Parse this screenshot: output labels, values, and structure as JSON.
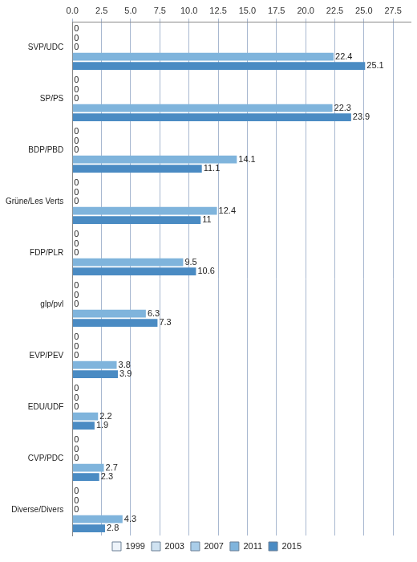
{
  "chart_data": {
    "type": "bar",
    "orientation": "horizontal",
    "categories": [
      "SVP/UDC",
      "SP/PS",
      "BDP/PBD",
      "Grüne/Les Verts",
      "FDP/PLR",
      "glp/pvl",
      "EVP/PEV",
      "EDU/UDF",
      "CVP/PDC",
      "Diverse/Divers"
    ],
    "series": [
      {
        "name": "1999",
        "color": "#eef4fa",
        "values": [
          0,
          0,
          0,
          0,
          0,
          0,
          0,
          0,
          0,
          0
        ]
      },
      {
        "name": "2003",
        "color": "#cfe2f1",
        "values": [
          0,
          0,
          0,
          0,
          0,
          0,
          0,
          0,
          0,
          0
        ]
      },
      {
        "name": "2007",
        "color": "#a9cde9",
        "values": [
          0,
          0,
          0,
          0,
          0,
          0,
          0,
          0,
          0,
          0
        ]
      },
      {
        "name": "2011",
        "color": "#7fb4dc",
        "values": [
          22.4,
          22.3,
          14.1,
          12.4,
          9.5,
          6.3,
          3.8,
          2.2,
          2.7,
          4.3
        ]
      },
      {
        "name": "2015",
        "color": "#4a8bc3",
        "values": [
          25.1,
          23.9,
          11.1,
          11,
          10.6,
          7.3,
          3.9,
          1.9,
          2.3,
          2.8
        ]
      }
    ],
    "xlim": [
      0,
      29
    ],
    "xticks": [
      {
        "value": 0,
        "label": "0.0"
      },
      2.5,
      {
        "value": 5,
        "label": "5.0"
      },
      7.5,
      {
        "value": 10,
        "label": "10.0"
      },
      12.5,
      {
        "value": 15,
        "label": "15.0"
      },
      17.5,
      {
        "value": 20,
        "label": "20.0"
      },
      22.5,
      {
        "value": 25,
        "label": "25.0"
      },
      27.5
    ],
    "grid": true,
    "legend": "bottom",
    "data_labels": true
  }
}
